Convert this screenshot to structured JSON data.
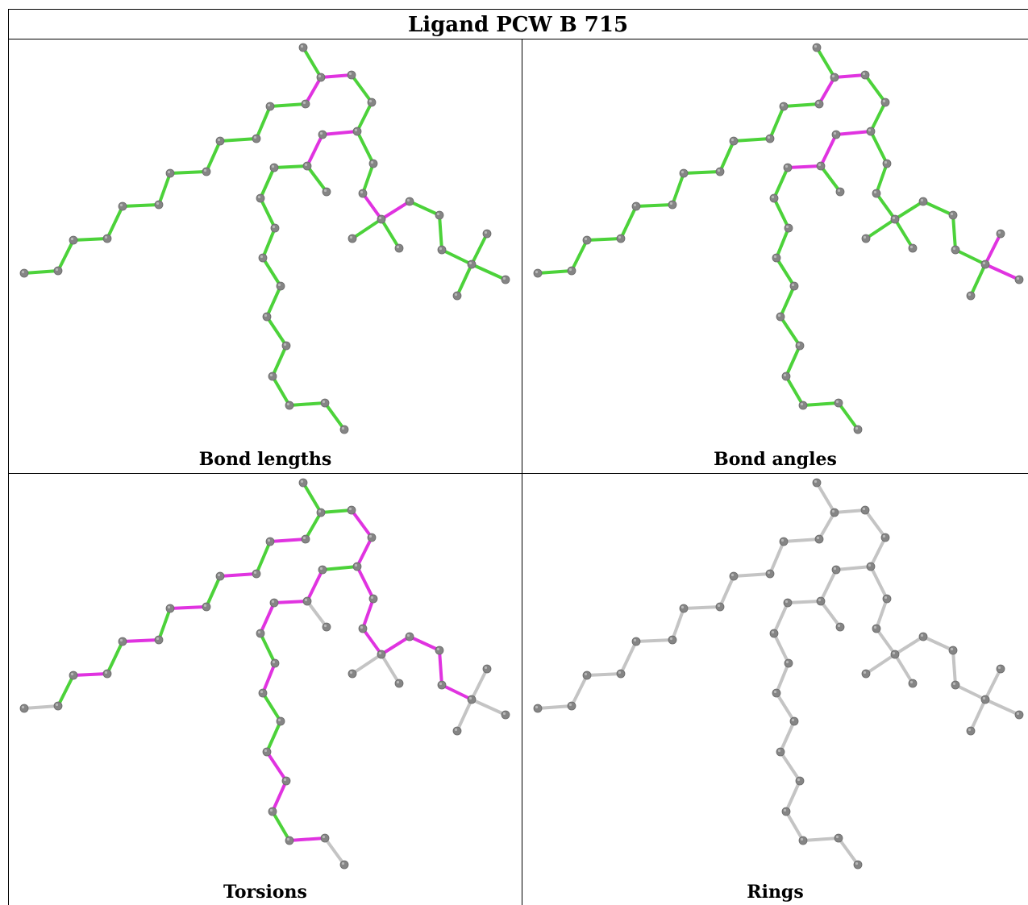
{
  "title": "Ligand PCW B 715",
  "panels": [
    {
      "caption": "Bond lengths",
      "mode": "lengths"
    },
    {
      "caption": "Bond angles",
      "mode": "angles"
    },
    {
      "caption": "Torsions",
      "mode": "torsions"
    },
    {
      "caption": "Rings",
      "mode": "rings"
    }
  ],
  "colors": {
    "ok": "#4cd23a",
    "outlier": "#e033e0",
    "neutral": "#c4c4c4",
    "atom": "#858585"
  }
}
